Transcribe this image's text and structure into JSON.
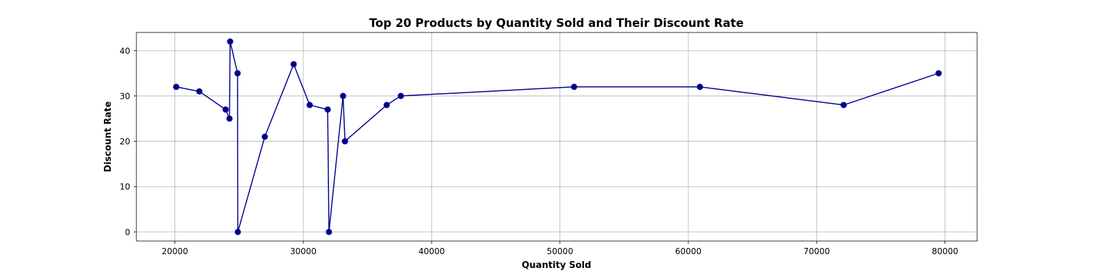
{
  "chart_data": {
    "type": "line",
    "title": "Top 20 Products by Quantity Sold and Their Discount Rate",
    "xlabel": "Quantity Sold",
    "ylabel": "Discount Rate",
    "xlim": [
      17000,
      82500
    ],
    "ylim": [
      -2,
      44
    ],
    "x_ticks": [
      20000,
      30000,
      40000,
      50000,
      60000,
      70000,
      80000
    ],
    "y_ticks": [
      0,
      10,
      20,
      30,
      40
    ],
    "grid": true,
    "line_color": "#00008b",
    "series": [
      {
        "points": [
          {
            "x": 20100,
            "y": 32
          },
          {
            "x": 21900,
            "y": 31
          },
          {
            "x": 23950,
            "y": 27
          },
          {
            "x": 24250,
            "y": 25
          },
          {
            "x": 24300,
            "y": 42
          },
          {
            "x": 24880,
            "y": 35
          },
          {
            "x": 24900,
            "y": 0
          },
          {
            "x": 27000,
            "y": 21
          },
          {
            "x": 29250,
            "y": 37
          },
          {
            "x": 30500,
            "y": 28
          },
          {
            "x": 31900,
            "y": 27
          },
          {
            "x": 32000,
            "y": 0
          },
          {
            "x": 33100,
            "y": 30
          },
          {
            "x": 33250,
            "y": 20
          },
          {
            "x": 36500,
            "y": 28
          },
          {
            "x": 37600,
            "y": 30
          },
          {
            "x": 51100,
            "y": 32
          },
          {
            "x": 60900,
            "y": 32
          },
          {
            "x": 72100,
            "y": 28
          },
          {
            "x": 79500,
            "y": 35
          }
        ]
      }
    ]
  }
}
